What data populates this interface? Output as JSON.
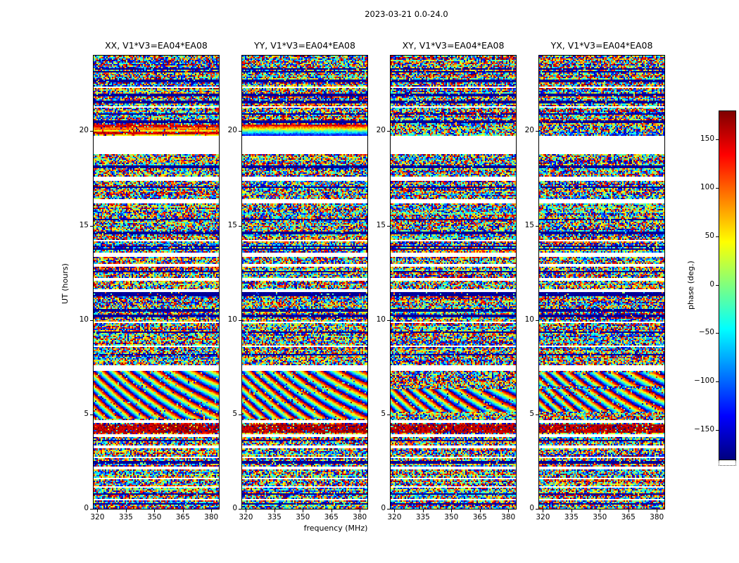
{
  "chart_data": {
    "type": "heatmap",
    "title": "2023-03-21 0.0-24.0",
    "xlabel": "frequency (MHz)",
    "ylabel": "UT (hours)",
    "panels": [
      "XX, V1*V3=EA04*EA08",
      "YY, V1*V3=EA04*EA08",
      "XY, V1*V3=EA04*EA08",
      "YX, V1*V3=EA04*EA08"
    ],
    "x_range_mhz": [
      318,
      384
    ],
    "y_range_hours": [
      0,
      24
    ],
    "x_ticks": {
      "labels": [
        "320",
        "335",
        "350",
        "365",
        "380"
      ],
      "values": [
        320,
        335,
        350,
        365,
        380
      ]
    },
    "y_ticks": {
      "labels": [
        "0",
        "5",
        "10",
        "15",
        "20"
      ],
      "values": [
        0,
        5,
        10,
        15,
        20
      ]
    },
    "color": {
      "label": "phase (deg.)",
      "colormap": "jet",
      "range_deg": [
        -180,
        180
      ],
      "tick_labels": [
        "150",
        "100",
        "50",
        "0",
        "−50",
        "−100",
        "−150"
      ],
      "tick_values": [
        150,
        100,
        50,
        0,
        -50,
        -100,
        -150
      ]
    },
    "content_description": "Interferometric visibility phase versus frequency (318-384 MHz) and time (UT 0-24 h) for correlation products XX, YY, XY, YX of baseline V1*V3=EA04*EA08 on 2023-03-21. Phases are mostly noise-like speckle; white horizontal bands are flagged/missing time ranges (largest near UT 19), a saturated red phase band sits near UT 4.3, coherent diagonal fringe stripes appear near UT 5-7, and structured red/blue streaks appear just above the large gap near UT 20 in XX and YY.",
    "data_gaps_ut": [
      [
        0.45,
        0.55
      ],
      [
        1.1,
        1.2
      ],
      [
        1.55,
        1.65
      ],
      [
        2.1,
        2.25
      ],
      [
        2.65,
        2.78
      ],
      [
        3.2,
        3.35
      ],
      [
        3.8,
        3.95
      ],
      [
        4.55,
        4.72
      ],
      [
        7.3,
        7.6
      ],
      [
        8.55,
        8.65
      ],
      [
        9.85,
        9.95
      ],
      [
        11.5,
        11.65
      ],
      [
        12.05,
        12.2
      ],
      [
        12.85,
        13.0
      ],
      [
        13.35,
        13.55
      ],
      [
        14.15,
        14.25
      ],
      [
        16.2,
        16.4
      ],
      [
        17.4,
        17.6
      ],
      [
        18.75,
        19.75
      ],
      [
        21.25,
        21.35
      ],
      [
        22.25,
        22.35
      ]
    ],
    "dark_rows_ut": [
      0.25,
      0.8,
      2.45,
      3.6,
      8.15,
      9.35,
      10.2,
      10.5,
      11.3,
      11.42,
      12.55,
      13.75,
      13.9,
      14.6,
      15.3,
      17.05,
      18.1,
      20.5,
      20.9,
      21.55,
      21.9,
      22.65,
      23.15,
      23.3
    ],
    "features": [
      {
        "ut": [
          4.05,
          4.5
        ],
        "type": "red",
        "panels": [
          0,
          1,
          2,
          3
        ]
      },
      {
        "ut": [
          4.8,
          7.3
        ],
        "type": "fringe",
        "panels": [
          0,
          1
        ]
      },
      {
        "ut": [
          5.15,
          6.3
        ],
        "type": "fringe",
        "panels": [
          2,
          3
        ]
      },
      {
        "ut": [
          6.45,
          7.25
        ],
        "type": "fringe",
        "panels": [
          3
        ]
      },
      {
        "ut": [
          19.75,
          20.35
        ],
        "type": "streaks",
        "panels": [
          0
        ]
      },
      {
        "ut": [
          19.75,
          20.35
        ],
        "type": "bluered",
        "panels": [
          1
        ]
      }
    ]
  }
}
